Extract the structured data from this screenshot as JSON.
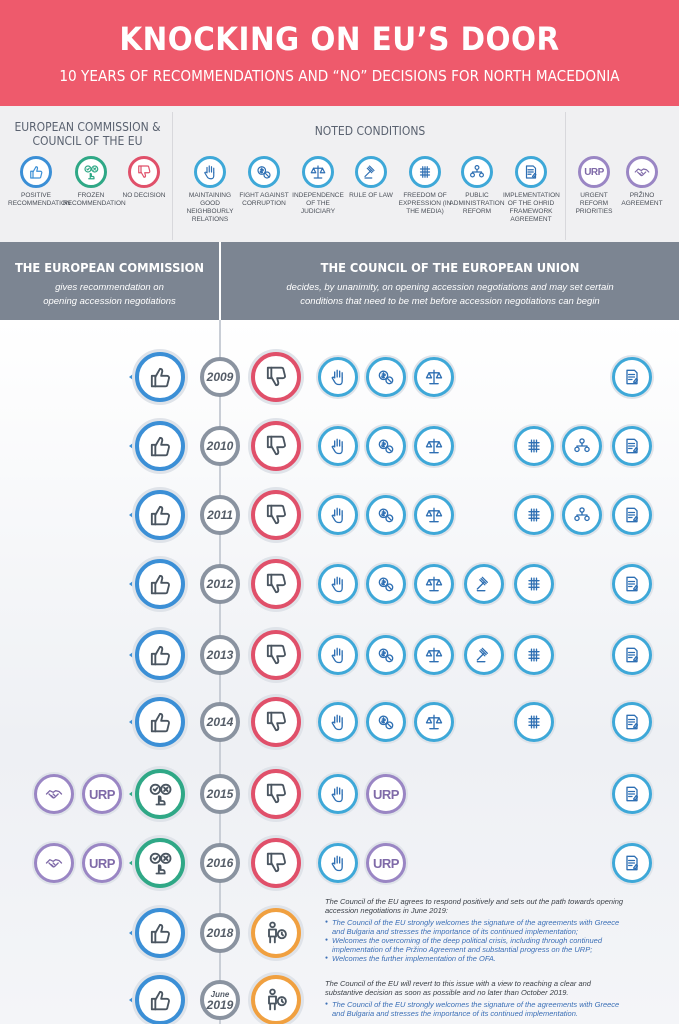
{
  "header": {
    "title": "KNOCKING ON EU’S DOOR",
    "subtitle": "10 YEARS OF RECOMMENDATIONS AND “NO” DECISIONS FOR NORTH MACEDONIA"
  },
  "legend": {
    "ec_heading": "EUROPEAN COMMISSION & COUNCIL OF THE EU",
    "conditions_heading": "NOTED CONDITIONS",
    "ec_items": [
      {
        "label": "POSITIVE RECOMMENDATION",
        "icon": "thumbs-up-icon",
        "color": "#3b8fd6"
      },
      {
        "label": "FROZEN RECOMMENDATION",
        "icon": "frozen-face-icon",
        "color": "#2fa886"
      },
      {
        "label": "NO DECISION",
        "icon": "thumbs-down-icon",
        "color": "#e0506a"
      }
    ],
    "conditions": [
      {
        "label": "MAINTAINING GOOD NEIGHBOURLY RELATIONS",
        "icon": "raised-hand-icon"
      },
      {
        "label": "FIGHT AGAINST CORRUPTION",
        "icon": "no-money-icon"
      },
      {
        "label": "INDEPENDENCE OF THE JUDICIARY",
        "icon": "scales-icon"
      },
      {
        "label": "RULE OF LAW",
        "icon": "gavel-icon"
      },
      {
        "label": "FREEDOM OF EXPRESSION (IN THE MEDIA)",
        "icon": "hashtag-grid-icon"
      },
      {
        "label": "PUBLIC ADMINISTRATION REFORM",
        "icon": "org-chart-icon"
      },
      {
        "label": "IMPLEMENTATION OF THE OHRID FRAMEWORK AGREEMENT",
        "icon": "document-icon"
      }
    ],
    "other": [
      {
        "label": "URGENT REFORM PRIORITIES",
        "icon": "URP"
      },
      {
        "label": "PRŽINO AGREEMENT",
        "icon": "handshake-icon"
      }
    ]
  },
  "bands": {
    "left_title": "THE EUROPEAN COMMISSION",
    "left_sub": "gives recommendation on opening accession negotiations",
    "right_title": "THE COUNCIL OF THE EUROPEAN UNION",
    "right_sub": "decides, by unanimity, on opening accession negotiations and may set certain conditions that need to be met before accession negotiations can begin"
  },
  "timeline": [
    {
      "year": "2009",
      "ec": "positive",
      "council": "no",
      "conds": [
        "raised-hand-icon",
        "no-money-icon",
        "scales-icon",
        "document-icon"
      ]
    },
    {
      "year": "2010",
      "ec": "positive",
      "council": "no",
      "conds": [
        "raised-hand-icon",
        "no-money-icon",
        "scales-icon",
        "hashtag-grid-icon",
        "org-chart-icon",
        "document-icon"
      ]
    },
    {
      "year": "2011",
      "ec": "positive",
      "council": "no",
      "conds": [
        "raised-hand-icon",
        "no-money-icon",
        "scales-icon",
        "hashtag-grid-icon",
        "org-chart-icon",
        "document-icon"
      ]
    },
    {
      "year": "2012",
      "ec": "positive",
      "council": "no",
      "conds": [
        "raised-hand-icon",
        "no-money-icon",
        "scales-icon",
        "gavel-icon",
        "hashtag-grid-icon",
        "document-icon"
      ]
    },
    {
      "year": "2013",
      "ec": "positive",
      "council": "no",
      "conds": [
        "raised-hand-icon",
        "no-money-icon",
        "scales-icon",
        "gavel-icon",
        "hashtag-grid-icon",
        "document-icon"
      ]
    },
    {
      "year": "2014",
      "ec": "positive",
      "council": "no",
      "conds": [
        "raised-hand-icon",
        "no-money-icon",
        "scales-icon",
        "hashtag-grid-icon",
        "document-icon"
      ]
    },
    {
      "year": "2015",
      "ec": "frozen",
      "council": "no",
      "left": [
        "handshake-icon",
        "URP"
      ],
      "conds": [
        "raised-hand-icon",
        "URP",
        "document-icon"
      ]
    },
    {
      "year": "2016",
      "ec": "frozen",
      "council": "no",
      "left": [
        "handshake-icon",
        "URP"
      ],
      "conds": [
        "raised-hand-icon",
        "URP",
        "document-icon"
      ]
    },
    {
      "year": "2018",
      "ec": "positive",
      "council": "pending"
    },
    {
      "year": "2019",
      "year_top": "June",
      "ec": "positive",
      "council": "pending"
    }
  ],
  "notes": {
    "n2018_head": "The Council of the EU agrees to respond positively and sets out the path towards opening accession negotiations in June 2019:",
    "n2018_items": [
      "The Council of the EU strongly welcomes the signature of the agreements with Greece and Bulgaria and stresses the importance of its continued implementation;",
      "Welcomes the overcoming of the deep political crisis, including through continued implementation of the Pržino Agreement and substantial progress on the URP;",
      "Welcomes the further implementation of the OFA."
    ],
    "n2019_head": "The Council of the EU will revert to this issue with a view to reaching a clear and substantive decision as soon as possible and no later than October 2019.",
    "n2019_items": [
      "The Council of the EU strongly welcomes the signature of the agreements with Greece and Bulgaria and stresses the importance of its continued implementation."
    ]
  },
  "colors": {
    "header": "#ee5a6c",
    "band": "#7c8592",
    "positive": "#3b8fd6",
    "frozen": "#2fa886",
    "no": "#e0506a",
    "condition": "#3ea8d8",
    "other": "#9a86c4",
    "pending": "#f0a040"
  }
}
